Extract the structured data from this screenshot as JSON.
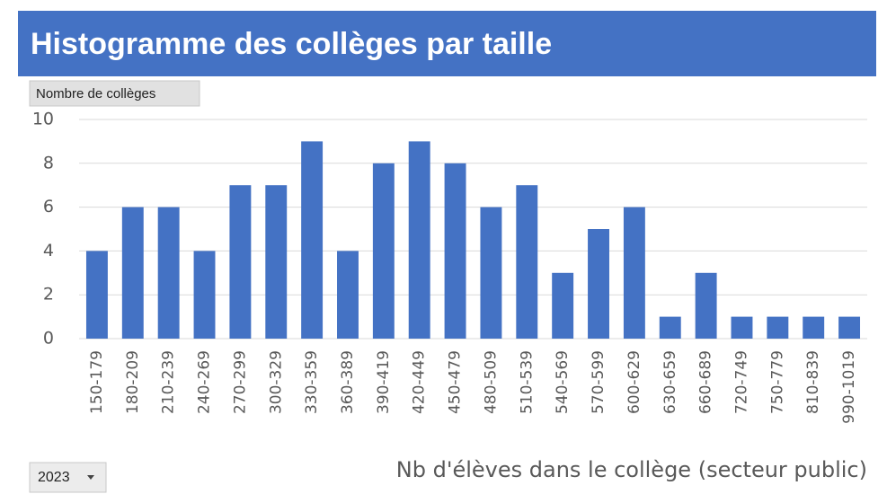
{
  "chart_data": {
    "type": "bar",
    "title": "Histogramme des collèges par taille",
    "y_label": "Nombre de collèges",
    "x_label": "Nb d'élèves dans le collège (secteur public)",
    "categories": [
      "150-179",
      "180-209",
      "210-239",
      "240-269",
      "270-299",
      "300-329",
      "330-359",
      "360-389",
      "390-419",
      "420-449",
      "450-479",
      "480-509",
      "510-539",
      "540-569",
      "570-599",
      "600-629",
      "630-659",
      "660-689",
      "720-749",
      "750-779",
      "810-839",
      "990-1019"
    ],
    "values": [
      4,
      6,
      6,
      4,
      7,
      7,
      9,
      4,
      8,
      9,
      8,
      6,
      7,
      3,
      5,
      6,
      1,
      3,
      1,
      1,
      1,
      1
    ],
    "color": "#4472c4",
    "ylim": [
      0,
      10
    ],
    "yticks": [
      0,
      2,
      4,
      6,
      8,
      10
    ],
    "grid": true
  },
  "controls": {
    "year": "2023"
  }
}
